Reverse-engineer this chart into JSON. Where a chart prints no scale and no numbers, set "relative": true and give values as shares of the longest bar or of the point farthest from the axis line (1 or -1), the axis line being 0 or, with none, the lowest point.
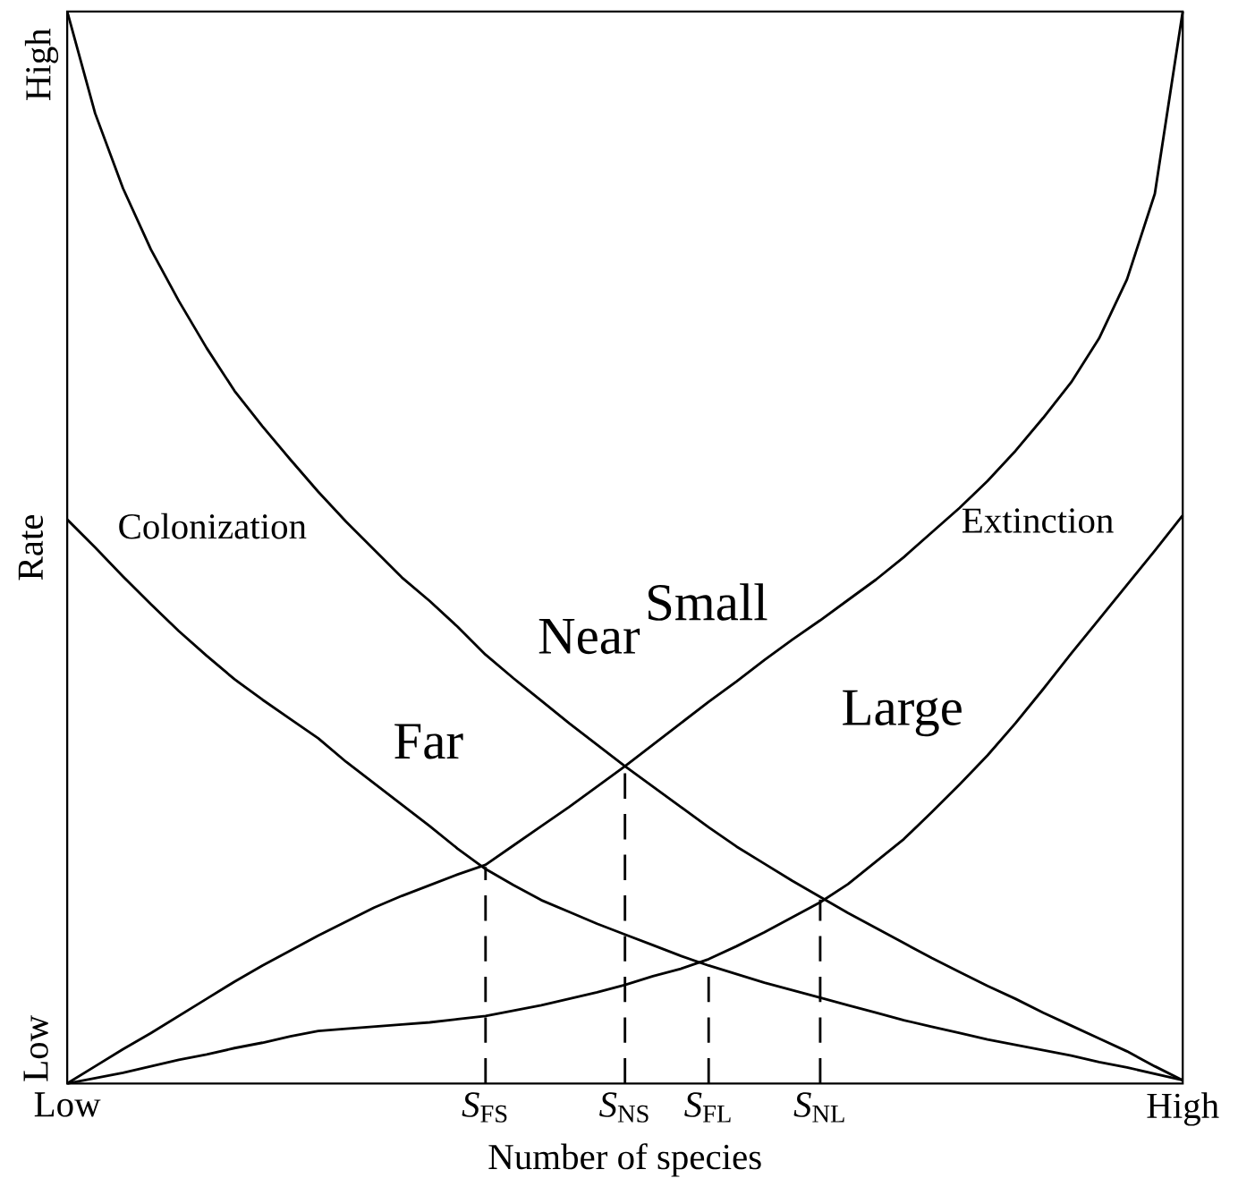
{
  "chart_data": {
    "type": "line",
    "relative": true,
    "xlabel": "Number of species",
    "ylabel": "Rate",
    "categories": [
      "Low",
      null,
      null,
      null,
      null,
      null,
      null,
      null,
      null,
      null,
      null,
      null,
      null,
      null,
      null,
      "*S*$_{FS}$",
      null,
      null,
      null,
      null,
      "*S*$_{NS}$",
      null,
      null,
      "*S*$_{FL}$",
      null,
      null,
      null,
      "*S*$_{NL}$",
      null,
      null,
      null,
      null,
      null,
      null,
      null,
      null,
      null,
      null,
      null,
      null,
      "High"
    ],
    "line_style": "solid",
    "annotations": [
      "Colonization",
      "Extinction",
      "Low",
      "High"
    ],
    "ref_lines": [
      {
        "axis": "x",
        "value": "*S*$_{FS}$",
        "line_style": "dashed"
      },
      {
        "axis": "x",
        "value": "*S*$_{NS}$",
        "line_style": "dashed"
      },
      {
        "axis": "x",
        "value": "*S*$_{FL}$",
        "line_style": "dashed"
      },
      {
        "axis": "x",
        "value": "*S*$_{NL}$",
        "line_style": "dashed"
      }
    ],
    "series": [
      {
        "name": "Near",
        "color": "#000000",
        "values": [
          1,
          0.905,
          0.835,
          0.778,
          0.73,
          0.686,
          0.646,
          0.613,
          0.582,
          0.552,
          0.524,
          0.498,
          0.472,
          0.45,
          0.426,
          0.4,
          0.378,
          0.357,
          0.336,
          0.316,
          0.296,
          0.277,
          0.258,
          0.239,
          0.221,
          0.205,
          0.189,
          0.174,
          0.159,
          0.145,
          0.131,
          0.117,
          0.104,
          0.091,
          0.079,
          0.066,
          0.054,
          0.042,
          0.03,
          0.016,
          0.003
        ]
      },
      {
        "name": "Far",
        "color": "#000000",
        "values": [
          0.526,
          0.5,
          0.473,
          0.447,
          0.422,
          0.399,
          0.377,
          0.358,
          0.34,
          0.322,
          0.3,
          0.28,
          0.26,
          0.24,
          0.219,
          0.2,
          0.185,
          0.171,
          0.16,
          0.149,
          0.139,
          0.129,
          0.119,
          0.11,
          0.102,
          0.094,
          0.087,
          0.08,
          0.073,
          0.066,
          0.059,
          0.053,
          0.047,
          0.041,
          0.036,
          0.031,
          0.026,
          0.02,
          0.015,
          0.009,
          0.003
        ]
      },
      {
        "name": "Small",
        "color": "#000000",
        "values": [
          0,
          0.016,
          0.032,
          0.047,
          0.063,
          0.079,
          0.095,
          0.11,
          0.124,
          0.138,
          0.151,
          0.164,
          0.175,
          0.185,
          0.195,
          0.204,
          0.222,
          0.24,
          0.258,
          0.277,
          0.296,
          0.316,
          0.336,
          0.356,
          0.375,
          0.395,
          0.414,
          0.432,
          0.451,
          0.47,
          0.491,
          0.514,
          0.537,
          0.562,
          0.59,
          0.621,
          0.654,
          0.695,
          0.75,
          0.83,
          1
        ]
      },
      {
        "name": "Large",
        "color": "#000000",
        "values": [
          0,
          0.005,
          0.01,
          0.016,
          0.022,
          0.027,
          0.033,
          0.038,
          0.044,
          0.049,
          0.051,
          0.053,
          0.055,
          0.057,
          0.06,
          0.063,
          0.068,
          0.073,
          0.079,
          0.085,
          0.092,
          0.1,
          0.107,
          0.116,
          0.128,
          0.141,
          0.155,
          0.169,
          0.186,
          0.207,
          0.228,
          0.253,
          0.279,
          0.306,
          0.336,
          0.368,
          0.401,
          0.433,
          0.465,
          0.497,
          0.53
        ]
      }
    ]
  }
}
